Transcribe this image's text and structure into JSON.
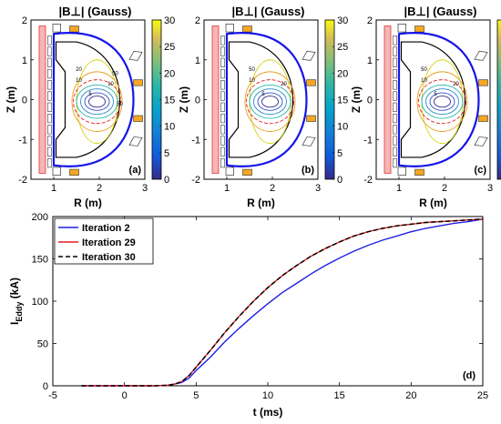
{
  "chart_data": [
    {
      "type": "contour",
      "panel": "(a)",
      "title": "|B⊥| (Gauss)",
      "xlabel": "R (m)",
      "ylabel": "Z (m)",
      "xlim": [
        0.5,
        3
      ],
      "ylim": [
        -2,
        2
      ],
      "xticks": [
        "1",
        "2",
        "3"
      ],
      "yticks": [
        "-2",
        "-1",
        "0",
        "1",
        "2"
      ],
      "colorbar": {
        "min": 0,
        "max": 30,
        "ticks": [
          "0",
          "5",
          "10",
          "15",
          "20",
          "25",
          "30"
        ],
        "colormap": "parula"
      },
      "contour_labels": [
        "5",
        "10",
        "10",
        "20",
        "50",
        "50"
      ]
    },
    {
      "type": "contour",
      "panel": "(b)",
      "title": "|B⊥| (Gauss)",
      "xlabel": "R (m)",
      "ylabel": "Z (m)",
      "xlim": [
        0.5,
        3
      ],
      "ylim": [
        -2,
        2
      ],
      "xticks": [
        "1",
        "2",
        "3"
      ],
      "yticks": [
        "-2",
        "-1",
        "0",
        "1",
        "2"
      ],
      "colorbar": {
        "min": 0,
        "max": 30,
        "ticks": [
          "0",
          "5",
          "10",
          "15",
          "20",
          "25",
          "30"
        ],
        "colormap": "parula"
      },
      "contour_labels": [
        "5",
        "10",
        "20",
        "50"
      ]
    },
    {
      "type": "contour",
      "panel": "(c)",
      "title": "|B⊥| (Gauss)",
      "xlabel": "R (m)",
      "ylabel": "Z (m)",
      "xlim": [
        0.5,
        3
      ],
      "ylim": [
        -2,
        2
      ],
      "xticks": [
        "1",
        "2",
        "3"
      ],
      "yticks": [
        "-2",
        "-1",
        "0",
        "1",
        "2"
      ],
      "colorbar": {
        "min": 0,
        "max": 30,
        "ticks": [
          "0",
          "5",
          "10",
          "15",
          "20",
          "25",
          "30"
        ],
        "colormap": "parula"
      },
      "contour_labels": [
        "5",
        "10",
        "20",
        "50"
      ]
    },
    {
      "type": "line",
      "panel": "(d)",
      "xlabel": "t (ms)",
      "ylabel_main": "I",
      "ylabel_sub": "Eddy",
      "ylabel_unit": "(kA)",
      "xlim": [
        -5,
        25
      ],
      "ylim": [
        0,
        200
      ],
      "xticks": [
        "-5",
        "0",
        "5",
        "10",
        "15",
        "20",
        "25"
      ],
      "yticks": [
        "0",
        "50",
        "100",
        "150",
        "200"
      ],
      "legend": "top-left",
      "series": [
        {
          "name": "Iteration 2",
          "color": "#1f1fe6",
          "dash": "solid",
          "x": [
            -3,
            0,
            2,
            3,
            3.5,
            4,
            4.5,
            5,
            6,
            7,
            8,
            9,
            10,
            11,
            12,
            13,
            14,
            15,
            16,
            17,
            18,
            19,
            20,
            21,
            22,
            23,
            24,
            25
          ],
          "y": [
            0,
            0,
            0,
            0.5,
            2,
            4,
            9,
            18,
            34,
            52,
            68,
            83,
            97,
            110,
            121,
            132,
            142,
            151,
            159,
            166,
            172,
            177,
            182,
            186,
            189,
            192,
            194,
            197
          ]
        },
        {
          "name": "Iteration 29",
          "color": "#e61e1e",
          "dash": "solid",
          "x": [
            -3,
            0,
            2,
            3,
            3.5,
            4,
            4.5,
            5,
            6,
            7,
            8,
            9,
            10,
            11,
            12,
            13,
            14,
            15,
            16,
            17,
            18,
            19,
            20,
            21,
            22,
            23,
            24,
            25
          ],
          "y": [
            0,
            0,
            0,
            0.5,
            2,
            5,
            12,
            22,
            42,
            63,
            82,
            100,
            116,
            130,
            142,
            153,
            162,
            170,
            177,
            182,
            186,
            189,
            191,
            193,
            194,
            195,
            196,
            197
          ]
        },
        {
          "name": "Iteration 30",
          "color": "#000000",
          "dash": "dashed",
          "x": [
            -3,
            0,
            2,
            3,
            3.5,
            4,
            4.5,
            5,
            6,
            7,
            8,
            9,
            10,
            11,
            12,
            13,
            14,
            15,
            16,
            17,
            18,
            19,
            20,
            21,
            22,
            23,
            24,
            25
          ],
          "y": [
            0,
            0,
            0,
            0.5,
            2,
            5,
            12,
            22,
            42,
            63,
            82,
            100,
            116,
            130,
            142,
            153,
            162,
            170,
            177,
            182,
            186,
            189,
            191,
            193,
            194,
            195,
            196,
            197
          ]
        }
      ]
    }
  ]
}
